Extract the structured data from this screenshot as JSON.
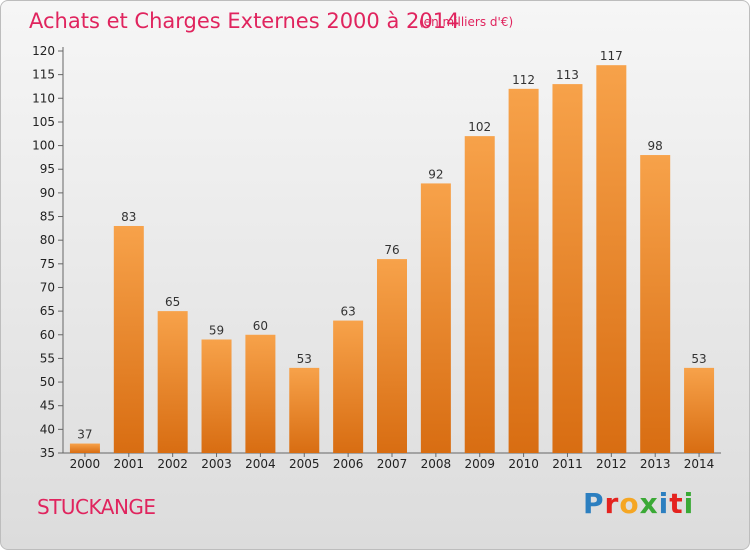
{
  "header": {
    "title": "Achats et Charges Externes 2000 à 2014",
    "subtitle": "(en milliers d'€)"
  },
  "footer": {
    "town": "STUCKANGE",
    "logo_text": "Proxiti",
    "logo_colors": [
      "#2c7fc0",
      "#e4231f",
      "#f5a623",
      "#3aa935",
      "#2c7fc0",
      "#e4231f",
      "#3aa935"
    ]
  },
  "chart_data": {
    "type": "bar",
    "categories": [
      "2000",
      "2001",
      "2002",
      "2003",
      "2004",
      "2005",
      "2006",
      "2007",
      "2008",
      "2009",
      "2010",
      "2011",
      "2012",
      "2013",
      "2014"
    ],
    "values": [
      37,
      83,
      65,
      59,
      60,
      53,
      63,
      76,
      92,
      102,
      112,
      113,
      117,
      98,
      53
    ],
    "ylim": [
      35,
      120
    ],
    "yticks": [
      35,
      40,
      45,
      50,
      55,
      60,
      65,
      70,
      75,
      80,
      85,
      90,
      95,
      100,
      105,
      110,
      115,
      120
    ],
    "grid": false,
    "bar_color": "#f39c3c"
  }
}
